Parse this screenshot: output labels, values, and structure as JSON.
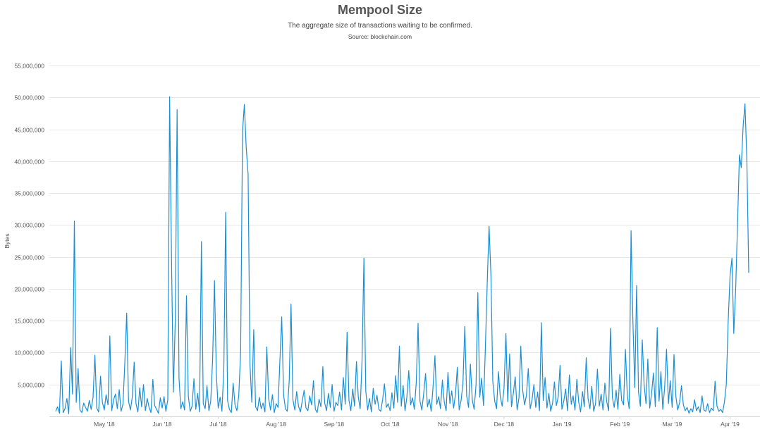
{
  "chart_data": {
    "type": "line",
    "title": "Mempool Size",
    "subtitle": "The aggregate size of transactions waiting to be confirmed.",
    "source": "Source: blockchain.com",
    "xlabel": "",
    "ylabel": "Bytes",
    "ylim": [
      0,
      55000000
    ],
    "yticks": [
      "5,000,000",
      "10,000,000",
      "15,000,000",
      "20,000,000",
      "25,000,000",
      "30,000,000",
      "35,000,000",
      "40,000,000",
      "45,000,000",
      "50,000,000",
      "55,000,000"
    ],
    "ytick_values": [
      5000000,
      10000000,
      15000000,
      20000000,
      25000000,
      30000000,
      35000000,
      40000000,
      45000000,
      50000000,
      55000000
    ],
    "xticks": [
      {
        "label": "May '18",
        "date": "2018-05-01"
      },
      {
        "label": "Jun '18",
        "date": "2018-06-01"
      },
      {
        "label": "Jul '18",
        "date": "2018-07-01"
      },
      {
        "label": "Aug '18",
        "date": "2018-08-01"
      },
      {
        "label": "Sep '18",
        "date": "2018-09-01"
      },
      {
        "label": "Oct '18",
        "date": "2018-10-01"
      },
      {
        "label": "Nov '18",
        "date": "2018-11-01"
      },
      {
        "label": "Dec '18",
        "date": "2018-12-01"
      },
      {
        "label": "Jan '19",
        "date": "2019-01-01"
      },
      {
        "label": "Feb '19",
        "date": "2019-02-01"
      },
      {
        "label": "Mar '19",
        "date": "2019-03-01"
      },
      {
        "label": "Apr '19",
        "date": "2019-04-01"
      }
    ],
    "grid": true,
    "legend": "none",
    "line_color": "#1a8fd6",
    "x_start": "2018-04-05",
    "x_end": "2019-04-11",
    "x_step": "1 day",
    "values": [
      800000.0,
      1500000.0,
      500000.0,
      8700000.0,
      600000.0,
      1200000.0,
      2800000.0,
      400000.0,
      10800000.0,
      3500000.0,
      30600000.0,
      2200000.0,
      7500000.0,
      1000000.0,
      600000.0,
      2100000.0,
      1400000.0,
      800000.0,
      2500000.0,
      1100000.0,
      3000000.0,
      9600000.0,
      1300000.0,
      700000.0,
      6300000.0,
      2200000.0,
      1000000.0,
      3400000.0,
      1800000.0,
      12600000.0,
      900000.0,
      2600000.0,
      3500000.0,
      1200000.0,
      4200000.0,
      800000.0,
      1900000.0,
      8200000.0,
      16200000.0,
      2400000.0,
      1000000.0,
      3000000.0,
      8500000.0,
      2000000.0,
      700000.0,
      4500000.0,
      1500000.0,
      5000000.0,
      900000.0,
      2800000.0,
      1400000.0,
      600000.0,
      5800000.0,
      1700000.0,
      1100000.0,
      500000.0,
      2900000.0,
      1300000.0,
      3100000.0,
      800000.0,
      2600000.0,
      50100000.0,
      24500000.0,
      3800000.0,
      15000000.0,
      48100000.0,
      6000000.0,
      1200000.0,
      2300000.0,
      1000000.0,
      18900000.0,
      3200000.0,
      800000.0,
      1600000.0,
      5900000.0,
      1100000.0,
      3600000.0,
      700000.0,
      27400000.0,
      2000000.0,
      1200000.0,
      4800000.0,
      900000.0,
      2400000.0,
      9000000.0,
      21300000.0,
      6500000.0,
      1300000.0,
      3000000.0,
      800000.0,
      7600000.0,
      32000000.0,
      2500000.0,
      1100000.0,
      600000.0,
      5200000.0,
      1800000.0,
      900000.0,
      3300000.0,
      10000000.0,
      44700000.0,
      48900000.0,
      42000000.0,
      38000000.0,
      8000000.0,
      2200000.0,
      13600000.0,
      1500000.0,
      900000.0,
      3000000.0,
      1200000.0,
      2100000.0,
      700000.0,
      10900000.0,
      2800000.0,
      1000000.0,
      3400000.0,
      600000.0,
      2000000.0,
      1400000.0,
      8700000.0,
      15600000.0,
      3300000.0,
      1200000.0,
      800000.0,
      5500000.0,
      17600000.0,
      2600000.0,
      1000000.0,
      3900000.0,
      1600000.0,
      700000.0,
      2400000.0,
      4100000.0,
      1300000.0,
      900000.0,
      3200000.0,
      1800000.0,
      5600000.0,
      1100000.0,
      600000.0,
      2700000.0,
      1500000.0,
      7800000.0,
      2100000.0,
      900000.0,
      3600000.0,
      1400000.0,
      5000000.0,
      800000.0,
      2200000.0,
      1700000.0,
      3800000.0,
      1000000.0,
      6100000.0,
      1900000.0,
      13200000.0,
      2500000.0,
      900000.0,
      4300000.0,
      1600000.0,
      8600000.0,
      3000000.0,
      1200000.0,
      8700000.0,
      24800000.0,
      4000000.0,
      1000000.0,
      2800000.0,
      700000.0,
      4400000.0,
      1900000.0,
      3300000.0,
      1100000.0,
      800000.0,
      2600000.0,
      5100000.0,
      1400000.0,
      2000000.0,
      900000.0,
      3700000.0,
      1300000.0,
      6400000.0,
      2200000.0,
      11000000.0,
      1600000.0,
      4800000.0,
      900000.0,
      3000000.0,
      7200000.0,
      1800000.0,
      2900000.0,
      1100000.0,
      5300000.0,
      14600000.0,
      2400000.0,
      1000000.0,
      3600000.0,
      6700000.0,
      1500000.0,
      2700000.0,
      800000.0,
      4600000.0,
      9500000.0,
      1900000.0,
      3100000.0,
      1200000.0,
      5700000.0,
      2300000.0,
      900000.0,
      6900000.0,
      2000000.0,
      4000000.0,
      1300000.0,
      3400000.0,
      7700000.0,
      1000000.0,
      2500000.0,
      5100000.0,
      14100000.0,
      3200000.0,
      1400000.0,
      8200000.0,
      2600000.0,
      1100000.0,
      4900000.0,
      19400000.0,
      3000000.0,
      6000000.0,
      1700000.0,
      10500000.0,
      21000000.0,
      29800000.0,
      22000000.0,
      5500000.0,
      2400000.0,
      1200000.0,
      7000000.0,
      3100000.0,
      1600000.0,
      4400000.0,
      13000000.0,
      2300000.0,
      9800000.0,
      1500000.0,
      3700000.0,
      6200000.0,
      1000000.0,
      2900000.0,
      11000000.0,
      4100000.0,
      1800000.0,
      3300000.0,
      7500000.0,
      1200000.0,
      2600000.0,
      5000000.0,
      1400000.0,
      3800000.0,
      900000.0,
      14700000.0,
      2500000.0,
      6100000.0,
      1300000.0,
      3600000.0,
      800000.0,
      2100000.0,
      5400000.0,
      1700000.0,
      3000000.0,
      8000000.0,
      1100000.0,
      2400000.0,
      4300000.0,
      900000.0,
      6500000.0,
      1900000.0,
      3200000.0,
      1000000.0,
      5800000.0,
      2200000.0,
      700000.0,
      3900000.0,
      1500000.0,
      9200000.0,
      2800000.0,
      1200000.0,
      4700000.0,
      800000.0,
      2000000.0,
      7400000.0,
      1600000.0,
      3500000.0,
      1000000.0,
      5200000.0,
      2300000.0,
      900000.0,
      13800000.0,
      3000000.0,
      1400000.0,
      4100000.0,
      1100000.0,
      6600000.0,
      2500000.0,
      1800000.0,
      10500000.0,
      3300000.0,
      1200000.0,
      29100000.0,
      15000000.0,
      4500000.0,
      20500000.0,
      3800000.0,
      1600000.0,
      12000000.0,
      5000000.0,
      2000000.0,
      9000000.0,
      1300000.0,
      3600000.0,
      6800000.0,
      1500000.0,
      13900000.0,
      2400000.0,
      7000000.0,
      1100000.0,
      4600000.0,
      10500000.0,
      2000000.0,
      5600000.0,
      1400000.0,
      9700000.0,
      3100000.0,
      1000000.0,
      2200000.0,
      4800000.0,
      1800000.0,
      900000.0,
      1400000.0,
      500000.0,
      1200000.0,
      700000.0,
      2600000.0,
      900000.0,
      1500000.0,
      600000.0,
      3200000.0,
      1000000.0,
      800000.0,
      2000000.0,
      600000.0,
      1300000.0,
      900000.0,
      5500000.0,
      1600000.0,
      800000.0,
      1100000.0,
      600000.0,
      2300000.0,
      5000000.0,
      15000000.0,
      22000000.0,
      24800000.0,
      13000000.0,
      20000000.0,
      30000000.0,
      41000000.0,
      39000000.0,
      45500000.0,
      49000000.0,
      40000000.0,
      22500000.0
    ]
  }
}
